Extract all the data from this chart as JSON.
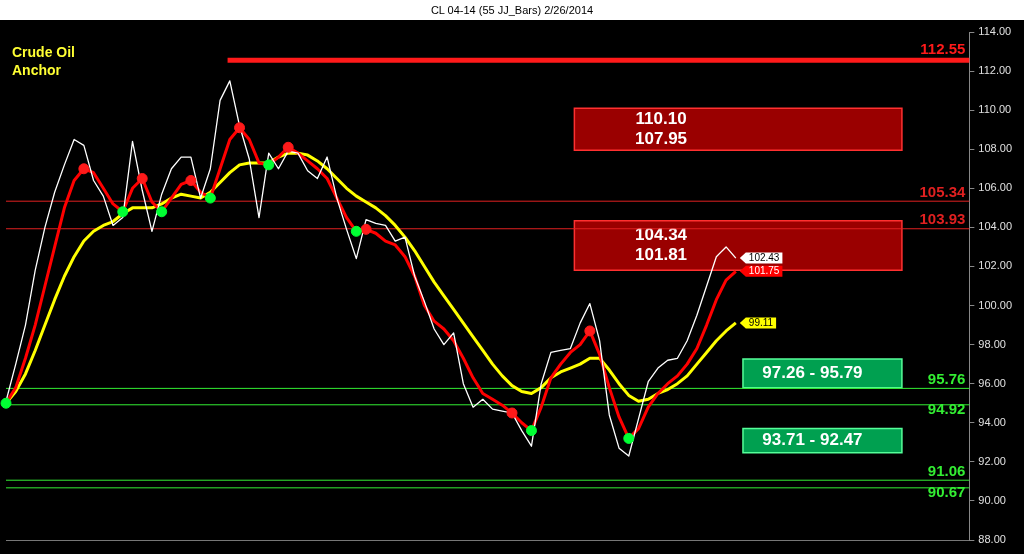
{
  "chart_data": {
    "type": "line",
    "title": "CL 04-14 (55 JJ_Bars)  2/26/2014",
    "categories": [
      null,
      null,
      null,
      null,
      null,
      null,
      null,
      null,
      null,
      null,
      null,
      null,
      null,
      null,
      null,
      null,
      null,
      null,
      null,
      null,
      null,
      null,
      null,
      null,
      null,
      null,
      null,
      null,
      null,
      null,
      null,
      null,
      null,
      null,
      null,
      null,
      null,
      null,
      null,
      null,
      null,
      null,
      null,
      null,
      null,
      null,
      null,
      null,
      null,
      null,
      null,
      null,
      null,
      null,
      null,
      null,
      null,
      null,
      null,
      null,
      null,
      null,
      null,
      null,
      null,
      null,
      null,
      null,
      null,
      null,
      null,
      null,
      null,
      null,
      null,
      null,
      null,
      null,
      null,
      null,
      null,
      null,
      null,
      null,
      null,
      null,
      null,
      null,
      null,
      null,
      null,
      null,
      null,
      null,
      null,
      null,
      null,
      null,
      null,
      null
    ],
    "series": [
      {
        "type": "line",
        "color": "#ffffff",
        "marker": "none",
        "values": [
          95.1,
          97.0,
          99.0,
          101.8,
          104.0,
          105.8,
          107.2,
          108.5,
          108.2,
          106.4,
          105.6,
          104.1,
          104.5,
          108.4,
          105.9,
          103.8,
          105.7,
          107.0,
          107.6,
          107.6,
          105.5,
          107.0,
          110.5,
          111.5,
          109.2,
          107.5,
          104.5,
          107.8,
          107.0,
          107.9,
          107.8,
          106.9,
          106.5,
          107.6,
          105.5,
          103.9,
          102.4,
          104.4,
          104.2,
          104.1,
          103.3,
          103.5,
          101.5,
          100.2,
          98.8,
          98.0,
          98.6,
          96.0,
          94.8,
          95.2,
          94.7,
          94.6,
          94.5,
          93.6,
          92.8,
          96.0,
          97.6,
          97.7,
          97.8,
          99.1,
          100.1,
          98.2,
          94.4,
          92.7,
          92.3,
          94.2,
          96.1,
          96.8,
          97.2,
          97.3,
          98.2,
          99.5,
          101.0,
          102.5,
          103.0,
          102.43,
          null,
          null,
          null,
          null,
          null,
          null,
          null,
          null,
          null,
          null,
          null,
          null,
          null,
          null,
          null,
          null,
          null,
          null,
          null,
          null,
          null,
          null,
          null,
          null
        ],
        "value_labels": [
          null,
          null,
          null,
          null,
          null,
          null,
          null,
          null,
          null,
          null,
          null,
          null,
          null,
          null,
          null,
          null,
          null,
          null,
          null,
          null,
          null,
          null,
          null,
          null,
          null,
          null,
          null,
          null,
          null,
          null,
          null,
          null,
          null,
          null,
          null,
          null,
          null,
          null,
          null,
          null,
          null,
          null,
          null,
          null,
          null,
          null,
          null,
          null,
          null,
          null,
          null,
          null,
          null,
          null,
          null,
          null,
          null,
          null,
          null,
          null,
          null,
          null,
          null,
          null,
          null,
          null,
          null,
          null,
          null,
          null,
          null,
          null,
          null,
          null,
          null,
          "102.43",
          null,
          null,
          null,
          null,
          null,
          null,
          null,
          null,
          null,
          null,
          null,
          null,
          null,
          null,
          null,
          null,
          null,
          null,
          null,
          null,
          null,
          null,
          null,
          null
        ]
      },
      {
        "type": "line",
        "color": "#ff0000",
        "marker": "none",
        "values": [
          95.0,
          95.8,
          97.3,
          99.0,
          101.0,
          103.0,
          105.0,
          106.4,
          107.0,
          106.8,
          106.0,
          105.2,
          104.8,
          106.0,
          106.5,
          105.3,
          104.8,
          105.5,
          106.2,
          106.4,
          105.8,
          105.5,
          107.0,
          108.5,
          109.1,
          108.5,
          107.3,
          107.2,
          107.6,
          108.1,
          107.8,
          107.4,
          107.0,
          106.5,
          105.5,
          104.5,
          103.8,
          103.9,
          103.7,
          103.3,
          103.1,
          102.5,
          101.5,
          100.0,
          99.2,
          98.8,
          98.2,
          97.3,
          96.3,
          95.5,
          95.2,
          94.9,
          94.5,
          94.0,
          93.6,
          94.8,
          96.3,
          97.0,
          97.6,
          98.0,
          98.7,
          97.5,
          95.8,
          94.3,
          93.2,
          93.7,
          94.8,
          95.5,
          96.0,
          96.4,
          97.0,
          97.8,
          99.0,
          100.3,
          101.3,
          101.75,
          null,
          null,
          null,
          null,
          null,
          null,
          null,
          null,
          null,
          null,
          null,
          null,
          null,
          null,
          null,
          null,
          null,
          null,
          null,
          null,
          null,
          null,
          null,
          null
        ],
        "value_labels": [
          null,
          null,
          null,
          null,
          null,
          null,
          null,
          null,
          null,
          null,
          null,
          null,
          null,
          null,
          null,
          null,
          null,
          null,
          null,
          null,
          null,
          null,
          null,
          null,
          null,
          null,
          null,
          null,
          null,
          null,
          null,
          null,
          null,
          null,
          null,
          null,
          null,
          null,
          null,
          null,
          null,
          null,
          null,
          null,
          null,
          null,
          null,
          null,
          null,
          null,
          null,
          null,
          null,
          null,
          null,
          null,
          null,
          null,
          null,
          null,
          null,
          null,
          null,
          null,
          null,
          null,
          null,
          null,
          null,
          null,
          null,
          null,
          null,
          null,
          null,
          "101.75",
          null,
          null,
          null,
          null,
          null,
          null,
          null,
          null,
          null,
          null,
          null,
          null,
          null,
          null,
          null,
          null,
          null,
          null,
          null,
          null,
          null,
          null,
          null,
          null
        ]
      },
      {
        "type": "line",
        "color": "#ffff00",
        "marker": "none",
        "values": [
          95.0,
          95.6,
          96.5,
          97.7,
          99.0,
          100.3,
          101.5,
          102.5,
          103.3,
          103.8,
          104.1,
          104.3,
          104.7,
          105.0,
          105.0,
          105.0,
          105.2,
          105.5,
          105.7,
          105.6,
          105.5,
          105.8,
          106.3,
          106.8,
          107.2,
          107.3,
          107.3,
          107.3,
          107.6,
          107.8,
          107.8,
          107.7,
          107.4,
          107.0,
          106.5,
          106.0,
          105.6,
          105.3,
          105.0,
          104.6,
          104.1,
          103.5,
          102.8,
          102.0,
          101.2,
          100.5,
          99.8,
          99.1,
          98.4,
          97.7,
          97.0,
          96.4,
          95.9,
          95.6,
          95.5,
          95.8,
          96.3,
          96.6,
          96.8,
          97.0,
          97.3,
          97.3,
          96.7,
          96.0,
          95.4,
          95.1,
          95.2,
          95.5,
          95.7,
          96.0,
          96.4,
          97.0,
          97.6,
          98.2,
          98.7,
          99.11,
          null,
          null,
          null,
          null,
          null,
          null,
          null,
          null,
          null,
          null,
          null,
          null,
          null,
          null,
          null,
          null,
          null,
          null,
          null,
          null,
          null,
          null,
          null,
          null
        ],
        "value_labels": [
          null,
          null,
          null,
          null,
          null,
          null,
          null,
          null,
          null,
          null,
          null,
          null,
          null,
          null,
          null,
          null,
          null,
          null,
          null,
          null,
          null,
          null,
          null,
          null,
          null,
          null,
          null,
          null,
          null,
          null,
          null,
          null,
          null,
          null,
          null,
          null,
          null,
          null,
          null,
          null,
          null,
          null,
          null,
          null,
          null,
          null,
          null,
          null,
          null,
          null,
          null,
          null,
          null,
          null,
          null,
          null,
          null,
          null,
          null,
          null,
          null,
          null,
          null,
          null,
          null,
          null,
          null,
          null,
          null,
          null,
          null,
          null,
          null,
          null,
          null,
          "99.11",
          null,
          null,
          null,
          null,
          null,
          null,
          null,
          null,
          null,
          null,
          null,
          null,
          null,
          null,
          null,
          null,
          null,
          null,
          null,
          null,
          null,
          null,
          null,
          null
        ]
      },
      {
        "type": "scatter",
        "color": "#00ff33",
        "marker": "circle",
        "values": [
          95.0,
          null,
          null,
          null,
          null,
          null,
          null,
          null,
          null,
          null,
          null,
          null,
          104.8,
          null,
          null,
          null,
          104.8,
          null,
          null,
          null,
          null,
          105.5,
          null,
          null,
          null,
          null,
          null,
          107.2,
          null,
          null,
          null,
          null,
          null,
          null,
          null,
          null,
          103.8,
          null,
          null,
          null,
          null,
          null,
          null,
          null,
          null,
          null,
          null,
          null,
          null,
          null,
          null,
          null,
          null,
          null,
          93.6,
          null,
          null,
          null,
          null,
          null,
          null,
          null,
          null,
          null,
          93.2,
          null,
          null,
          null,
          null,
          null,
          null,
          null,
          null,
          null,
          null,
          null,
          null,
          null,
          null,
          null,
          null,
          null,
          null,
          null,
          null,
          null,
          null,
          null,
          null,
          null,
          null,
          null,
          null,
          null,
          null,
          null,
          null,
          null,
          null,
          null
        ]
      },
      {
        "type": "scatter",
        "color": "#ff1a1a",
        "marker": "circle",
        "values": [
          null,
          null,
          null,
          null,
          null,
          null,
          null,
          null,
          107.0,
          null,
          null,
          null,
          null,
          null,
          106.5,
          null,
          null,
          null,
          null,
          106.4,
          null,
          null,
          null,
          null,
          109.1,
          null,
          null,
          null,
          null,
          108.1,
          null,
          null,
          null,
          null,
          null,
          null,
          null,
          103.9,
          null,
          null,
          null,
          null,
          null,
          null,
          null,
          null,
          null,
          null,
          null,
          null,
          null,
          null,
          94.5,
          null,
          null,
          null,
          null,
          null,
          null,
          null,
          98.7,
          null,
          null,
          null,
          null,
          null,
          null,
          null,
          null,
          null,
          null,
          null,
          null,
          null,
          null,
          null,
          null,
          null,
          null,
          null,
          null,
          null,
          null,
          null,
          null,
          null,
          null,
          null,
          null,
          null,
          null,
          null,
          null,
          null,
          null,
          null,
          null,
          null,
          null,
          null
        ]
      }
    ],
    "ylim": [
      88,
      114
    ],
    "yticks": [
      {
        "value": 88,
        "label": "88.00"
      },
      {
        "value": 90,
        "label": "90.00"
      },
      {
        "value": 92,
        "label": "92.00"
      },
      {
        "value": 94,
        "label": "94.00"
      },
      {
        "value": 96,
        "label": "96.00"
      },
      {
        "value": 98,
        "label": "98.00"
      },
      {
        "value": 100,
        "label": "100.00"
      },
      {
        "value": 102,
        "label": "102.00"
      },
      {
        "value": 104,
        "label": "104.00"
      },
      {
        "value": 106,
        "label": "106.00"
      },
      {
        "value": 108,
        "label": "108.00"
      },
      {
        "value": 110,
        "label": "110.00"
      },
      {
        "value": 112,
        "label": "112.00"
      },
      {
        "value": 114,
        "label": "114.00"
      }
    ],
    "ref_lines": [
      {
        "axis": "y",
        "value": 112.55,
        "label": "112.55",
        "color": "#ff1a1a"
      },
      {
        "axis": "y",
        "value": 105.34,
        "label": "105.34",
        "color": "#e02020"
      },
      {
        "axis": "y",
        "value": 103.93,
        "label": "103.93",
        "color": "#e02020"
      },
      {
        "axis": "y",
        "value": 95.76,
        "label": "95.76",
        "color": "#33ee33"
      },
      {
        "axis": "y",
        "value": 94.92,
        "label": "94.92",
        "color": "#33ee33"
      },
      {
        "axis": "y",
        "value": 91.06,
        "label": "91.06",
        "color": "#33ee33"
      },
      {
        "axis": "y",
        "value": 90.67,
        "label": "90.67",
        "color": "#33ee33"
      }
    ],
    "bands": [
      {
        "axis": "y",
        "from": 107.95,
        "to": 110.1,
        "label": "110.10\n107.95",
        "color": "#9a0000"
      },
      {
        "axis": "y",
        "from": 101.81,
        "to": 104.34,
        "label": "104.34\n101.81",
        "color": "#9a0000"
      },
      {
        "axis": "y",
        "from": 95.79,
        "to": 97.26,
        "label": "97.26 - 95.79",
        "color": "#00a050"
      },
      {
        "axis": "y",
        "from": 92.47,
        "to": 93.71,
        "label": "93.71 - 92.47",
        "color": "#00a050"
      }
    ],
    "annotations": [
      "Crude Oil",
      "Anchor"
    ],
    "grid": false,
    "legend": false,
    "tick_labels": "y"
  }
}
